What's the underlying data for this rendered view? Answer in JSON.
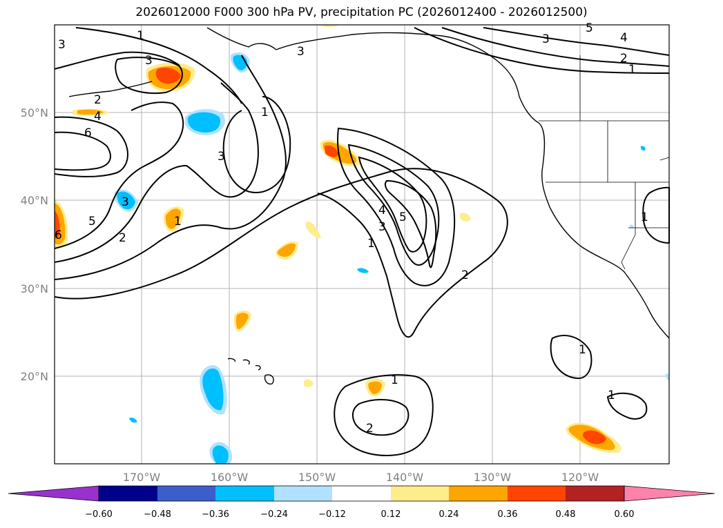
{
  "title": "2026012000 F000 300 hPa PV, precipitation PC (2026012400 - 2026012500)",
  "lat_labels": [
    "50°N",
    "40°N",
    "30°N",
    "20°N"
  ],
  "lon_labels": [
    "170°W",
    "160°W",
    "150°W",
    "140°W",
    "130°W",
    "120°W"
  ],
  "contour_labels": [
    "1",
    "2",
    "3",
    "4",
    "5",
    "6"
  ],
  "colorbar": {
    "tick_labels": [
      "−0.60",
      "−0.48",
      "−0.36",
      "−0.24",
      "−0.12",
      "0.12",
      "0.24",
      "0.36",
      "0.48",
      "0.60"
    ],
    "colors": [
      "#9932cc",
      "#00008b",
      "#3a5fcd",
      "#00bfff",
      "#b0e2ff",
      "#ffffff",
      "#ffec8b",
      "#ffa500",
      "#ff4500",
      "#b22222",
      "#ff82ab"
    ]
  }
}
